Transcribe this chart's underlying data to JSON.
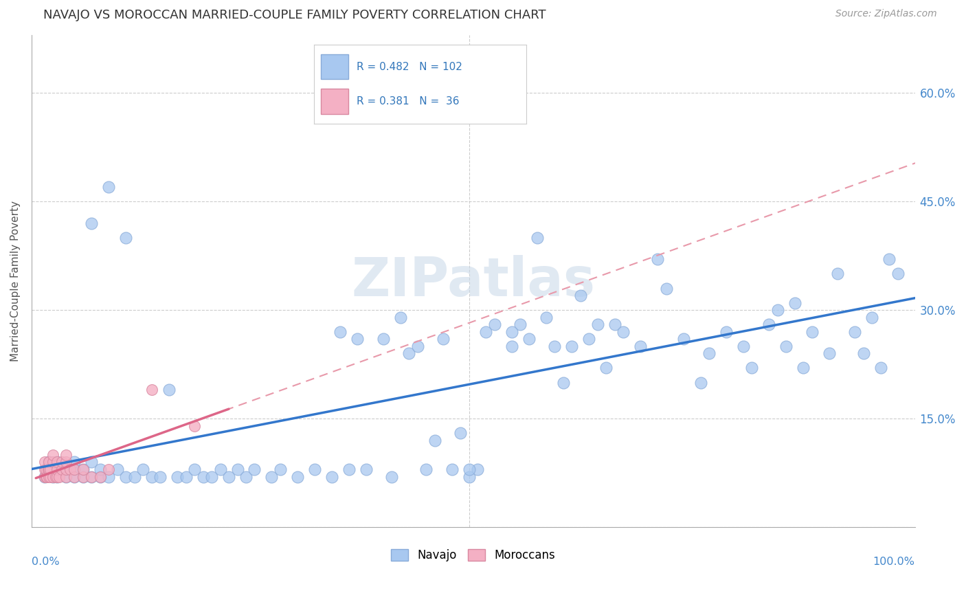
{
  "title": "NAVAJO VS MOROCCAN MARRIED-COUPLE FAMILY POVERTY CORRELATION CHART",
  "source": "Source: ZipAtlas.com",
  "ylabel": "Married-Couple Family Poverty",
  "navajo_R": 0.482,
  "navajo_N": 102,
  "moroccan_R": 0.381,
  "moroccan_N": 36,
  "navajo_color": "#a8c8f0",
  "navajo_edge": "#88aad8",
  "moroccan_color": "#f4b0c4",
  "moroccan_edge": "#d888a0",
  "navajo_line_color": "#3377cc",
  "moroccan_line_color": "#dd6688",
  "dashed_line_color": "#e899aa",
  "watermark": "ZIPatlas",
  "watermark_color": "#c8d8e8",
  "background_color": "#ffffff",
  "grid_color": "#cccccc",
  "yticks": [
    0.0,
    0.15,
    0.3,
    0.45,
    0.6
  ],
  "ytick_labels": [
    "",
    "15.0%",
    "30.0%",
    "45.0%",
    "60.0%"
  ],
  "xlim": [
    0.0,
    1.0
  ],
  "ylim": [
    0.0,
    0.68
  ],
  "navajo_x": [
    0.005,
    0.01,
    0.01,
    0.015,
    0.02,
    0.02,
    0.02,
    0.025,
    0.03,
    0.03,
    0.04,
    0.04,
    0.04,
    0.05,
    0.05,
    0.06,
    0.06,
    0.06,
    0.07,
    0.07,
    0.08,
    0.08,
    0.09,
    0.1,
    0.1,
    0.11,
    0.12,
    0.13,
    0.14,
    0.15,
    0.16,
    0.17,
    0.18,
    0.19,
    0.2,
    0.21,
    0.22,
    0.23,
    0.24,
    0.25,
    0.27,
    0.28,
    0.3,
    0.32,
    0.34,
    0.35,
    0.36,
    0.37,
    0.38,
    0.4,
    0.41,
    0.42,
    0.43,
    0.44,
    0.45,
    0.46,
    0.47,
    0.48,
    0.49,
    0.5,
    0.51,
    0.52,
    0.53,
    0.55,
    0.56,
    0.57,
    0.58,
    0.59,
    0.6,
    0.61,
    0.62,
    0.63,
    0.64,
    0.65,
    0.66,
    0.67,
    0.68,
    0.7,
    0.72,
    0.73,
    0.75,
    0.77,
    0.78,
    0.8,
    0.82,
    0.83,
    0.85,
    0.86,
    0.87,
    0.88,
    0.89,
    0.9,
    0.92,
    0.93,
    0.95,
    0.96,
    0.97,
    0.98,
    0.99,
    1.0,
    0.5,
    0.55
  ],
  "navajo_y": [
    0.07,
    0.08,
    0.09,
    0.07,
    0.07,
    0.08,
    0.09,
    0.08,
    0.07,
    0.08,
    0.07,
    0.08,
    0.09,
    0.07,
    0.08,
    0.07,
    0.09,
    0.42,
    0.07,
    0.08,
    0.07,
    0.47,
    0.08,
    0.07,
    0.4,
    0.07,
    0.08,
    0.07,
    0.07,
    0.19,
    0.07,
    0.07,
    0.08,
    0.07,
    0.07,
    0.08,
    0.07,
    0.08,
    0.07,
    0.08,
    0.07,
    0.08,
    0.07,
    0.08,
    0.07,
    0.27,
    0.08,
    0.26,
    0.08,
    0.26,
    0.07,
    0.29,
    0.24,
    0.25,
    0.08,
    0.12,
    0.26,
    0.08,
    0.13,
    0.07,
    0.08,
    0.27,
    0.28,
    0.25,
    0.28,
    0.26,
    0.4,
    0.29,
    0.25,
    0.2,
    0.25,
    0.32,
    0.26,
    0.28,
    0.22,
    0.28,
    0.27,
    0.25,
    0.37,
    0.33,
    0.26,
    0.2,
    0.24,
    0.27,
    0.25,
    0.22,
    0.28,
    0.3,
    0.25,
    0.31,
    0.22,
    0.27,
    0.24,
    0.35,
    0.27,
    0.24,
    0.29,
    0.22,
    0.37,
    0.35,
    0.08,
    0.27
  ],
  "moroccan_x": [
    0.005,
    0.005,
    0.005,
    0.007,
    0.007,
    0.008,
    0.009,
    0.01,
    0.01,
    0.01,
    0.012,
    0.012,
    0.015,
    0.015,
    0.015,
    0.018,
    0.02,
    0.02,
    0.02,
    0.022,
    0.025,
    0.025,
    0.03,
    0.03,
    0.03,
    0.03,
    0.035,
    0.04,
    0.04,
    0.05,
    0.05,
    0.06,
    0.07,
    0.08,
    0.13,
    0.18
  ],
  "moroccan_y": [
    0.07,
    0.08,
    0.09,
    0.07,
    0.08,
    0.07,
    0.08,
    0.07,
    0.08,
    0.09,
    0.07,
    0.08,
    0.07,
    0.09,
    0.1,
    0.07,
    0.07,
    0.08,
    0.09,
    0.07,
    0.08,
    0.09,
    0.07,
    0.08,
    0.09,
    0.1,
    0.08,
    0.07,
    0.08,
    0.07,
    0.08,
    0.07,
    0.07,
    0.08,
    0.19,
    0.14
  ]
}
